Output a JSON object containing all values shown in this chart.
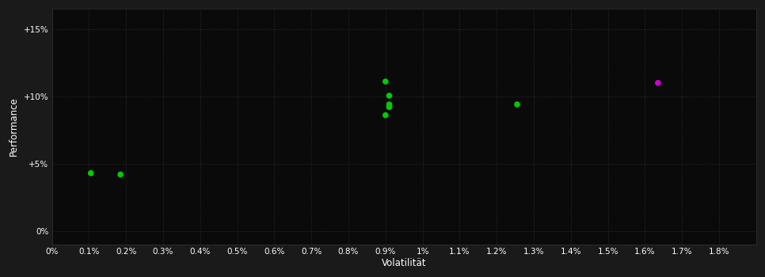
{
  "background_color": "#1a1a1a",
  "plot_bg_color": "#0a0a0a",
  "grid_color": "#333333",
  "text_color": "#ffffff",
  "xlabel": "Volatilität",
  "ylabel": "Performance",
  "xtick_positions": [
    0.0,
    0.001,
    0.002,
    0.003,
    0.004,
    0.005,
    0.006,
    0.007,
    0.008,
    0.009,
    0.01,
    0.011,
    0.012,
    0.013,
    0.014,
    0.015,
    0.016,
    0.017,
    0.018
  ],
  "xtick_labels": [
    "0%",
    "0.1%",
    "0.2%",
    "0.3%",
    "0.4%",
    "0.5%",
    "0.6%",
    "0.7%",
    "0.8%",
    "0.9%",
    "1%",
    "1.1%",
    "1.2%",
    "1.3%",
    "1.4%",
    "1.5%",
    "1.6%",
    "1.7%",
    "1.8%"
  ],
  "ytick_positions": [
    0.0,
    0.05,
    0.1,
    0.15
  ],
  "ytick_labels": [
    "0%",
    "+5%",
    "+10%",
    "+15%"
  ],
  "xlim": [
    0.0,
    0.019
  ],
  "ylim": [
    -0.01,
    0.165
  ],
  "green_points": [
    [
      0.00105,
      0.043
    ],
    [
      0.00185,
      0.042
    ],
    [
      0.009,
      0.111
    ],
    [
      0.0091,
      0.1005
    ],
    [
      0.0091,
      0.094
    ],
    [
      0.0091,
      0.092
    ],
    [
      0.009,
      0.086
    ],
    [
      0.01255,
      0.094
    ]
  ],
  "magenta_points": [
    [
      0.01635,
      0.11
    ]
  ],
  "green_color": "#00cc00",
  "magenta_color": "#cc00cc",
  "marker_size": 30
}
